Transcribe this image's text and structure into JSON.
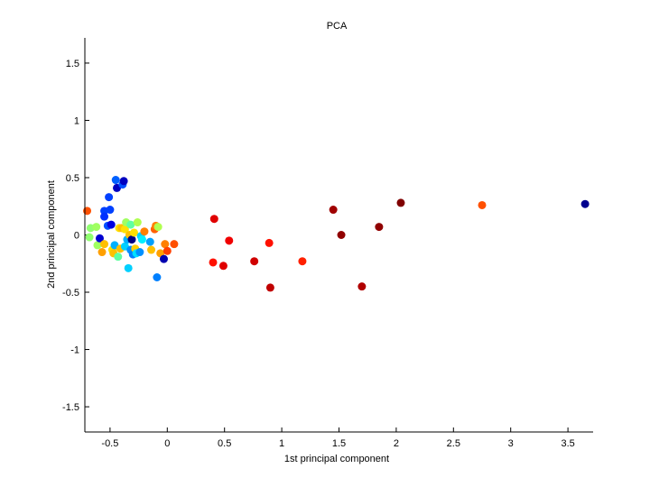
{
  "chart_data": {
    "type": "scatter",
    "title": "PCA",
    "xlabel": "1st principal component",
    "ylabel": "2nd principal component",
    "xlim": [
      -0.72,
      3.72
    ],
    "ylim": [
      -1.72,
      1.72
    ],
    "xticks": [
      -0.5,
      0,
      0.5,
      1,
      1.5,
      2,
      2.5,
      3,
      3.5
    ],
    "xtick_labels": [
      "-0.5",
      "0",
      "0.5",
      "1",
      "1.5",
      "2",
      "2.5",
      "3",
      "3.5"
    ],
    "yticks": [
      -1.5,
      -1,
      -0.5,
      0,
      0.5,
      1,
      1.5
    ],
    "ytick_labels": [
      "-1.5",
      "-1",
      "-0.5",
      "0",
      "0.5",
      "1",
      "1.5"
    ],
    "grid": false,
    "legend": "none",
    "points": [
      {
        "x": -0.7,
        "y": 0.21,
        "color": "#ff5000"
      },
      {
        "x": -0.68,
        "y": -0.02,
        "color": "#90ff70"
      },
      {
        "x": -0.67,
        "y": 0.06,
        "color": "#90ff70"
      },
      {
        "x": -0.62,
        "y": 0.07,
        "color": "#a0ff60"
      },
      {
        "x": -0.61,
        "y": -0.09,
        "color": "#a0ff60"
      },
      {
        "x": -0.59,
        "y": -0.03,
        "color": "#0000d0"
      },
      {
        "x": -0.57,
        "y": -0.15,
        "color": "#ffa000"
      },
      {
        "x": -0.55,
        "y": -0.08,
        "color": "#ffc000"
      },
      {
        "x": -0.55,
        "y": 0.21,
        "color": "#0040ff"
      },
      {
        "x": -0.55,
        "y": 0.16,
        "color": "#0030ff"
      },
      {
        "x": -0.52,
        "y": 0.08,
        "color": "#0050ff"
      },
      {
        "x": -0.51,
        "y": 0.33,
        "color": "#0040ff"
      },
      {
        "x": -0.5,
        "y": 0.22,
        "color": "#0040ff"
      },
      {
        "x": -0.49,
        "y": 0.09,
        "color": "#0000e0"
      },
      {
        "x": -0.48,
        "y": -0.13,
        "color": "#ffe000"
      },
      {
        "x": -0.47,
        "y": -0.16,
        "color": "#ffc000"
      },
      {
        "x": -0.46,
        "y": -0.09,
        "color": "#00b0ff"
      },
      {
        "x": -0.45,
        "y": 0.48,
        "color": "#0060ff"
      },
      {
        "x": -0.44,
        "y": 0.41,
        "color": "#0000c0"
      },
      {
        "x": -0.43,
        "y": -0.19,
        "color": "#60ffa0"
      },
      {
        "x": -0.42,
        "y": 0.06,
        "color": "#ffe000"
      },
      {
        "x": -0.41,
        "y": -0.12,
        "color": "#ffc000"
      },
      {
        "x": -0.4,
        "y": 0.06,
        "color": "#ffc000"
      },
      {
        "x": -0.39,
        "y": 0.44,
        "color": "#0050ff"
      },
      {
        "x": -0.38,
        "y": 0.47,
        "color": "#0000c0"
      },
      {
        "x": -0.37,
        "y": -0.1,
        "color": "#00d0ff"
      },
      {
        "x": -0.37,
        "y": 0.05,
        "color": "#ffe000"
      },
      {
        "x": -0.36,
        "y": 0.11,
        "color": "#a0ff60"
      },
      {
        "x": -0.35,
        "y": -0.04,
        "color": "#00b0ff"
      },
      {
        "x": -0.34,
        "y": -0.29,
        "color": "#00d0ff"
      },
      {
        "x": -0.33,
        "y": 0.0,
        "color": "#ffc000"
      },
      {
        "x": -0.32,
        "y": -0.13,
        "color": "#0090ff"
      },
      {
        "x": -0.32,
        "y": 0.09,
        "color": "#60ffa0"
      },
      {
        "x": -0.31,
        "y": -0.04,
        "color": "#000080"
      },
      {
        "x": -0.3,
        "y": -0.17,
        "color": "#0080ff"
      },
      {
        "x": -0.29,
        "y": 0.02,
        "color": "#ffe000"
      },
      {
        "x": -0.28,
        "y": -0.12,
        "color": "#ffd000"
      },
      {
        "x": -0.27,
        "y": -0.16,
        "color": "#00e0ff"
      },
      {
        "x": -0.26,
        "y": 0.11,
        "color": "#b0ff50"
      },
      {
        "x": -0.24,
        "y": -0.15,
        "color": "#0090ff"
      },
      {
        "x": -0.23,
        "y": -0.01,
        "color": "#00d0ff"
      },
      {
        "x": -0.22,
        "y": -0.04,
        "color": "#00f0ff"
      },
      {
        "x": -0.2,
        "y": 0.03,
        "color": "#ff8000"
      },
      {
        "x": -0.15,
        "y": -0.06,
        "color": "#00a0ff"
      },
      {
        "x": -0.14,
        "y": -0.13,
        "color": "#ffc000"
      },
      {
        "x": -0.11,
        "y": 0.05,
        "color": "#ff6000"
      },
      {
        "x": -0.1,
        "y": 0.08,
        "color": "#ff8000"
      },
      {
        "x": -0.09,
        "y": -0.37,
        "color": "#0080ff"
      },
      {
        "x": -0.08,
        "y": 0.07,
        "color": "#b0ff50"
      },
      {
        "x": -0.06,
        "y": -0.16,
        "color": "#ffa000"
      },
      {
        "x": -0.03,
        "y": -0.21,
        "color": "#0000b0"
      },
      {
        "x": -0.02,
        "y": -0.08,
        "color": "#ff8000"
      },
      {
        "x": 0.0,
        "y": -0.14,
        "color": "#ff4000"
      },
      {
        "x": 0.06,
        "y": -0.08,
        "color": "#ff5000"
      },
      {
        "x": 0.4,
        "y": -0.24,
        "color": "#ff1000"
      },
      {
        "x": 0.41,
        "y": 0.14,
        "color": "#e00000"
      },
      {
        "x": 0.49,
        "y": -0.27,
        "color": "#e00000"
      },
      {
        "x": 0.54,
        "y": -0.05,
        "color": "#f00000"
      },
      {
        "x": 0.76,
        "y": -0.23,
        "color": "#d00000"
      },
      {
        "x": 0.89,
        "y": -0.07,
        "color": "#ff1000"
      },
      {
        "x": 0.9,
        "y": -0.46,
        "color": "#c00000"
      },
      {
        "x": 1.18,
        "y": -0.23,
        "color": "#ff2000"
      },
      {
        "x": 1.45,
        "y": 0.22,
        "color": "#a00000"
      },
      {
        "x": 1.52,
        "y": 0.0,
        "color": "#900000"
      },
      {
        "x": 1.7,
        "y": -0.45,
        "color": "#b00000"
      },
      {
        "x": 1.85,
        "y": 0.07,
        "color": "#900000"
      },
      {
        "x": 2.04,
        "y": 0.28,
        "color": "#800000"
      },
      {
        "x": 2.75,
        "y": 0.26,
        "color": "#ff5000"
      },
      {
        "x": 3.65,
        "y": 0.27,
        "color": "#00008f"
      }
    ]
  }
}
